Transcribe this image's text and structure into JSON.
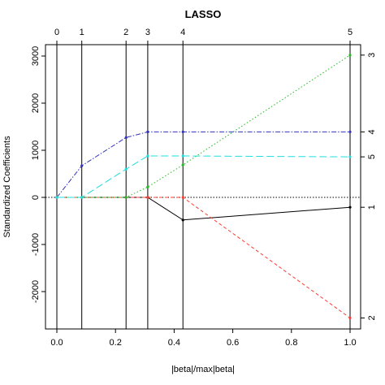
{
  "chart_data": {
    "type": "line",
    "title": "LASSO",
    "xlabel": "|beta|/max|beta|",
    "ylabel": "Standardized Coefficients",
    "xlim": [
      0,
      1
    ],
    "ylim": [
      -2800,
      3200
    ],
    "x_ticks": [
      0.0,
      0.2,
      0.4,
      0.6,
      0.8,
      1.0
    ],
    "x_tick_labels": [
      "0.0",
      "0.2",
      "0.4",
      "0.6",
      "0.8",
      "1.0"
    ],
    "y_ticks": [
      -2000,
      -1000,
      0,
      1000,
      2000,
      3000
    ],
    "y_tick_labels": [
      "-2000",
      "-1000",
      "0",
      "1000",
      "2000",
      "3000"
    ],
    "steps": {
      "x": [
        0.0,
        0.085,
        0.236,
        0.31,
        0.43,
        1.0
      ],
      "labels": [
        "0",
        "1",
        "2",
        "3",
        "4",
        "5"
      ]
    },
    "series": [
      {
        "id": "1",
        "color": "#000000",
        "dash": "",
        "x": [
          0.0,
          0.085,
          0.236,
          0.31,
          0.43,
          1.0
        ],
        "values": [
          0,
          0,
          0,
          0,
          -480,
          -210
        ]
      },
      {
        "id": "2",
        "color": "#ff3b30",
        "dash": "4,3",
        "x": [
          0.0,
          0.085,
          0.236,
          0.31,
          0.43,
          1.0
        ],
        "values": [
          0,
          0,
          0,
          0,
          0,
          -2560
        ]
      },
      {
        "id": "3",
        "color": "#22bb22",
        "dash": "1.5,2.5",
        "x": [
          0.0,
          0.085,
          0.236,
          0.31,
          0.43,
          1.0
        ],
        "values": [
          0,
          0,
          0,
          220,
          690,
          3020
        ]
      },
      {
        "id": "4",
        "color": "#3333bb",
        "dash": "6,2,1.5,2",
        "x": [
          0.0,
          0.085,
          0.236,
          0.31,
          0.43,
          1.0
        ],
        "values": [
          0,
          670,
          1270,
          1390,
          1390,
          1390
        ]
      },
      {
        "id": "5",
        "color": "#22dddd",
        "dash": "9,4",
        "x": [
          0.0,
          0.085,
          0.236,
          0.31,
          0.43,
          1.0
        ],
        "values": [
          0,
          0,
          600,
          880,
          880,
          860
        ]
      }
    ],
    "right_labels": [
      "3",
      "4",
      "5",
      "1",
      "2"
    ],
    "grid": false,
    "legend": "none"
  }
}
